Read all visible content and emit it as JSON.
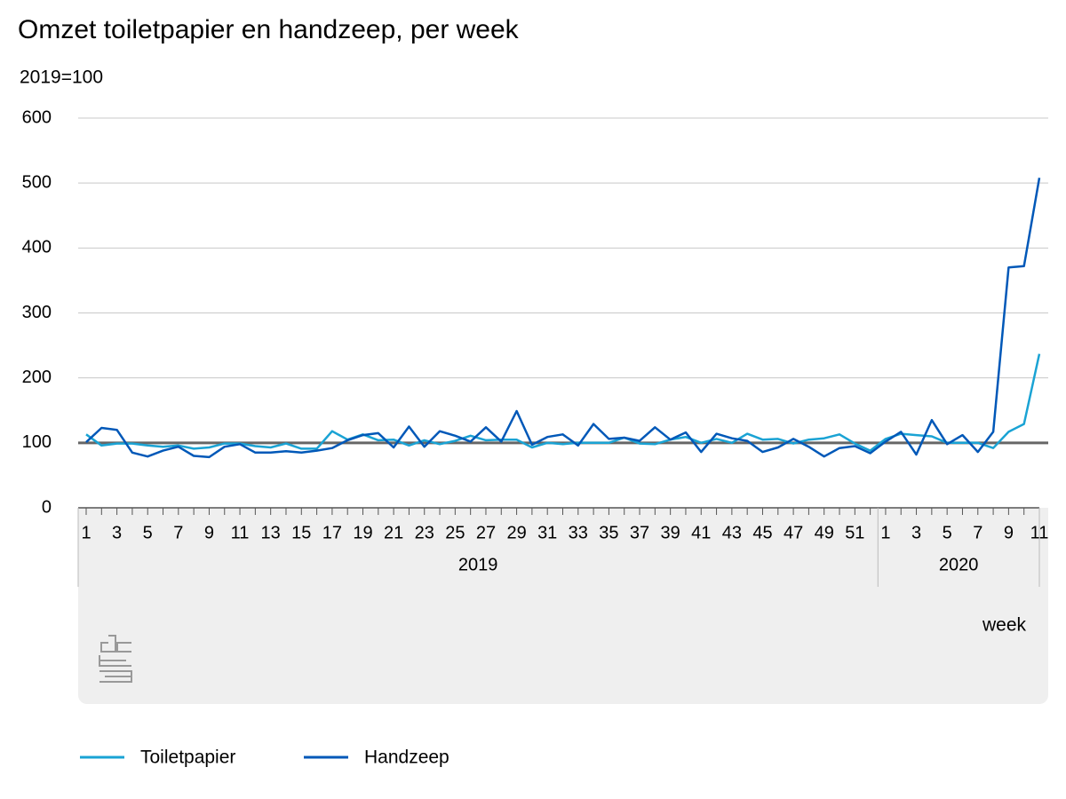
{
  "chart_data": {
    "type": "line",
    "title": "Omzet toiletpapier en handzeep, per week",
    "subtitle": "2019=100",
    "x_label": "week",
    "categories": [
      "1",
      null,
      "3",
      null,
      "5",
      null,
      "7",
      null,
      "9",
      null,
      "11",
      null,
      "13",
      null,
      "15",
      null,
      "17",
      null,
      "19",
      null,
      "21",
      null,
      "23",
      null,
      "25",
      null,
      "27",
      null,
      "29",
      null,
      "31",
      null,
      "33",
      null,
      "35",
      null,
      "37",
      null,
      "39",
      null,
      "41",
      null,
      "43",
      null,
      "45",
      null,
      "47",
      null,
      "49",
      null,
      "51",
      null,
      "1",
      null,
      "3",
      null,
      "5",
      null,
      "7",
      null,
      "9",
      null,
      "11"
    ],
    "x_groups": [
      {
        "label": "2019",
        "weeks": 52
      },
      {
        "label": "2020",
        "weeks": 11
      }
    ],
    "series": [
      {
        "name": "Toiletpapier",
        "color": "#1aa3d4",
        "values": [
          113,
          96,
          99,
          99,
          96,
          94,
          96,
          91,
          93,
          99,
          99,
          95,
          93,
          99,
          91,
          91,
          118,
          105,
          113,
          104,
          105,
          96,
          104,
          98,
          103,
          111,
          104,
          105,
          105,
          93,
          100,
          98,
          100,
          100,
          100,
          108,
          99,
          98,
          105,
          109,
          100,
          106,
          100,
          114,
          105,
          106,
          99,
          105,
          107,
          113,
          99,
          88,
          106,
          114,
          112,
          110,
          100,
          100,
          100,
          92,
          117,
          129,
          237
        ]
      },
      {
        "name": "Handzeep",
        "color": "#0058b8",
        "values": [
          101,
          123,
          120,
          85,
          79,
          88,
          94,
          80,
          78,
          94,
          98,
          85,
          85,
          87,
          85,
          88,
          92,
          104,
          112,
          115,
          93,
          125,
          94,
          118,
          111,
          102,
          124,
          102,
          149,
          97,
          109,
          113,
          96,
          129,
          106,
          108,
          103,
          124,
          105,
          116,
          86,
          114,
          107,
          103,
          86,
          93,
          106,
          94,
          79,
          92,
          95,
          84,
          102,
          117,
          82,
          135,
          98,
          112,
          86,
          117,
          370,
          372,
          508
        ]
      }
    ],
    "reference_line": 100,
    "ylim": [
      0,
      600
    ],
    "yticks": [
      0,
      100,
      200,
      300,
      400,
      500,
      600
    ],
    "grid": true,
    "legend": "bottom"
  }
}
